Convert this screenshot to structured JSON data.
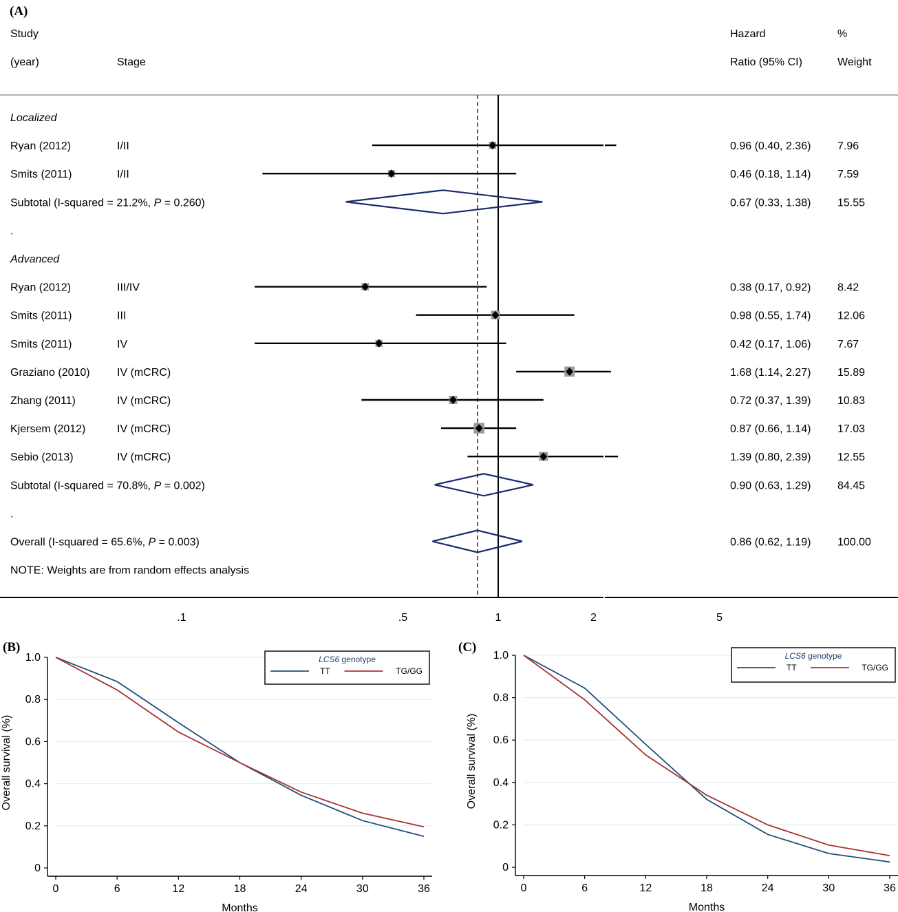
{
  "chart_data": [
    {
      "type": "forest",
      "panel": "(A)",
      "headers": {
        "study_line1": "Study",
        "study_line2": "(year)",
        "stage": "Stage",
        "hr_line1": "Hazard",
        "hr_line2": "Ratio (95% CI)",
        "weight_line1": "%",
        "weight_line2": "Weight"
      },
      "rows": [
        {
          "kind": "group",
          "label": "Localized"
        },
        {
          "kind": "study",
          "study": "Ryan (2012)",
          "stage": "I/II",
          "hr": 0.96,
          "lo": 0.4,
          "hi": 2.36,
          "hr_text": "0.96 (0.40, 2.36)",
          "weight": "7.96",
          "clip_hi": true
        },
        {
          "kind": "study",
          "study": "Smits (2011)",
          "stage": "I/II",
          "hr": 0.46,
          "lo": 0.18,
          "hi": 1.14,
          "hr_text": "0.46 (0.18, 1.14)",
          "weight": "7.59"
        },
        {
          "kind": "subtotal",
          "prefix": "Subtotal  (I-squared = 21.2%, ",
          "p_label": "P",
          "p_suffix": " = 0.260)",
          "hr": 0.67,
          "lo": 0.33,
          "hi": 1.38,
          "hr_text": "0.67 (0.33, 1.38)",
          "weight": "15.55"
        },
        {
          "kind": "dot",
          "label": "."
        },
        {
          "kind": "group",
          "label": "Advanced"
        },
        {
          "kind": "study",
          "study": "Ryan (2012)",
          "stage": "III/IV",
          "hr": 0.38,
          "lo": 0.17,
          "hi": 0.92,
          "hr_text": "0.38 (0.17, 0.92)",
          "weight": "8.42"
        },
        {
          "kind": "study",
          "study": "Smits (2011)",
          "stage": "III",
          "hr": 0.98,
          "lo": 0.55,
          "hi": 1.74,
          "hr_text": "0.98 (0.55, 1.74)",
          "weight": "12.06"
        },
        {
          "kind": "study",
          "study": "Smits (2011)",
          "stage": "IV",
          "hr": 0.42,
          "lo": 0.17,
          "hi": 1.06,
          "hr_text": "0.42 (0.17, 1.06)",
          "weight": "7.67"
        },
        {
          "kind": "study",
          "study": "Graziano (2010)",
          "stage": "IV (mCRC)",
          "hr": 1.68,
          "lo": 1.14,
          "hi": 2.27,
          "hr_text": "1.68 (1.14, 2.27)",
          "weight": "15.89"
        },
        {
          "kind": "study",
          "study": "Zhang (2011)",
          "stage": "IV (mCRC)",
          "hr": 0.72,
          "lo": 0.37,
          "hi": 1.39,
          "hr_text": "0.72 (0.37, 1.39)",
          "weight": "10.83"
        },
        {
          "kind": "study",
          "study": "Kjersem (2012)",
          "stage": "IV (mCRC)",
          "hr": 0.87,
          "lo": 0.66,
          "hi": 1.14,
          "hr_text": "0.87 (0.66, 1.14)",
          "weight": "17.03"
        },
        {
          "kind": "study",
          "study": "Sebio (2013)",
          "stage": "IV (mCRC)",
          "hr": 1.39,
          "lo": 0.8,
          "hi": 2.39,
          "hr_text": "1.39 (0.80, 2.39)",
          "weight": "12.55",
          "clip_hi": true
        },
        {
          "kind": "subtotal",
          "prefix": "Subtotal  (I-squared = 70.8%, ",
          "p_label": "P",
          "p_suffix": " = 0.002)",
          "hr": 0.9,
          "lo": 0.63,
          "hi": 1.29,
          "hr_text": "0.90 (0.63, 1.29)",
          "weight": "84.45"
        },
        {
          "kind": "dot",
          "label": "."
        },
        {
          "kind": "subtotal",
          "prefix": "Overall  (I-squared = 65.6%, ",
          "p_label": "P",
          "p_suffix": " = 0.003)",
          "hr": 0.86,
          "lo": 0.62,
          "hi": 1.19,
          "hr_text": "0.86 (0.62, 1.19)",
          "weight": "100.00"
        },
        {
          "kind": "note",
          "label": "NOTE: Weights are from random effects analysis"
        }
      ],
      "x_scale": "log",
      "x_ticks": [
        {
          "value": 0.1,
          "label": ".1"
        },
        {
          "value": 0.5,
          "label": ".5"
        },
        {
          "value": 1,
          "label": "1"
        },
        {
          "value": 2,
          "label": "2"
        },
        {
          "value": 5,
          "label": "5"
        }
      ],
      "null_line": 1,
      "overall_line": 0.86,
      "colors": {
        "diamond": "#1a2a6c",
        "marker_box": "#9a9a9a",
        "overall_line": "#8b1a1a"
      }
    },
    {
      "type": "line",
      "panel": "(B)",
      "xlabel": "Months",
      "ylabel": "Overall survival (%)",
      "x_ticks": [
        0,
        6,
        12,
        18,
        24,
        30,
        36
      ],
      "y_ticks": [
        {
          "value": 0,
          "label": "0"
        },
        {
          "value": 0.2,
          "label": "0.2"
        },
        {
          "value": 0.4,
          "label": "0.4"
        },
        {
          "value": 0.6,
          "label": "0.6"
        },
        {
          "value": 0.8,
          "label": "0.8"
        },
        {
          "value": 1.0,
          "label": "1.0"
        }
      ],
      "xlim": [
        0,
        36
      ],
      "ylim": [
        0,
        1.0
      ],
      "legend": {
        "title_italic": "LCS6",
        "title_rest": " genotype",
        "position": "top-right"
      },
      "series": [
        {
          "name": "TT",
          "color": "#1f4e79",
          "x": [
            0,
            6,
            12,
            18,
            24,
            30,
            36
          ],
          "y": [
            1.0,
            0.885,
            0.69,
            0.5,
            0.345,
            0.225,
            0.15
          ]
        },
        {
          "name": "TG/GG",
          "color": "#a83232",
          "x": [
            0,
            6,
            12,
            18,
            24,
            30,
            36
          ],
          "y": [
            1.0,
            0.845,
            0.645,
            0.5,
            0.36,
            0.26,
            0.195
          ]
        }
      ]
    },
    {
      "type": "line",
      "panel": "(C)",
      "xlabel": "Months",
      "ylabel": "Overall survival (%)",
      "x_ticks": [
        0,
        6,
        12,
        18,
        24,
        30,
        36
      ],
      "y_ticks": [
        {
          "value": 0,
          "label": "0"
        },
        {
          "value": 0.2,
          "label": "0.2"
        },
        {
          "value": 0.4,
          "label": "0.4"
        },
        {
          "value": 0.6,
          "label": "0.6"
        },
        {
          "value": 0.8,
          "label": "0.8"
        },
        {
          "value": 1.0,
          "label": "1.0"
        }
      ],
      "xlim": [
        0,
        36
      ],
      "ylim": [
        0,
        1.0
      ],
      "legend": {
        "title_italic": "LCS6",
        "title_rest": " genotype",
        "position": "top-right"
      },
      "series": [
        {
          "name": "TT",
          "color": "#1f4e79",
          "x": [
            0,
            6,
            12,
            18,
            24,
            30,
            36
          ],
          "y": [
            1.0,
            0.845,
            0.58,
            0.32,
            0.155,
            0.065,
            0.025
          ]
        },
        {
          "name": "TG/GG",
          "color": "#a83232",
          "x": [
            0,
            6,
            12,
            18,
            24,
            30,
            36
          ],
          "y": [
            1.0,
            0.79,
            0.53,
            0.34,
            0.2,
            0.105,
            0.055
          ]
        }
      ]
    }
  ]
}
